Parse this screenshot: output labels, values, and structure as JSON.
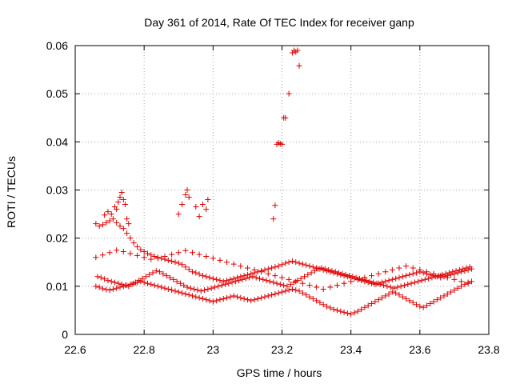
{
  "chart_data": {
    "type": "scatter",
    "title": "Day 361 of 2014, Rate Of TEC Index for receiver ganp",
    "xlabel": "GPS time / hours",
    "ylabel": "ROTI / TECUs",
    "xlim": [
      22.6,
      23.8
    ],
    "ylim": [
      0,
      0.06
    ],
    "xticks": [
      22.6,
      22.8,
      23.0,
      23.2,
      23.4,
      23.6,
      23.8
    ],
    "xtick_labels": [
      "22.6",
      "22.8",
      "23",
      "23.2",
      "23.4",
      "23.6",
      "23.8"
    ],
    "yticks": [
      0,
      0.01,
      0.02,
      0.03,
      0.04,
      0.05,
      0.06
    ],
    "ytick_labels": [
      "0",
      "0.01",
      "0.02",
      "0.03",
      "0.04",
      "0.05",
      "0.06"
    ],
    "grid": true,
    "marker": "+",
    "color": "#e00000",
    "series": [
      {
        "name": "ROTI",
        "x": [
          22.66,
          22.67,
          22.68,
          22.69,
          22.7,
          22.71,
          22.72,
          22.73,
          22.74,
          22.75,
          22.76,
          22.77,
          22.78,
          22.79,
          22.8,
          22.81,
          22.82,
          22.83,
          22.84,
          22.85,
          22.86,
          22.87,
          22.88,
          22.89,
          22.9,
          22.91,
          22.92,
          22.93,
          22.94,
          22.95,
          22.96,
          22.97,
          22.98,
          22.99,
          23.0,
          23.01,
          23.02,
          23.03,
          23.04,
          23.05,
          23.06,
          23.07,
          23.08,
          23.09,
          23.1,
          23.11,
          23.12,
          23.13,
          23.14,
          23.15,
          23.16,
          23.17,
          23.18,
          23.19,
          23.2,
          23.21,
          23.22,
          23.23,
          23.24,
          23.25,
          23.26,
          23.27,
          23.28,
          23.29,
          23.3,
          23.31,
          23.32,
          23.33,
          23.34,
          23.35,
          23.36,
          23.37,
          23.38,
          23.39,
          23.4,
          23.41,
          23.42,
          23.43,
          23.44,
          23.45,
          23.46,
          23.47,
          23.48,
          23.49,
          23.5,
          23.51,
          23.52,
          23.53,
          23.54,
          23.55,
          23.56,
          23.57,
          23.58,
          23.59,
          23.6,
          23.61,
          23.62,
          23.63,
          23.64,
          23.65,
          23.66,
          23.67,
          23.68,
          23.69,
          23.7,
          23.71,
          23.72,
          23.73,
          23.74,
          23.75,
          22.66,
          22.67,
          22.68,
          22.69,
          22.7,
          22.71,
          22.72,
          22.73,
          22.74,
          22.75,
          22.76,
          22.77,
          22.78,
          22.79,
          22.8,
          22.81,
          22.82,
          22.83,
          22.84,
          22.85,
          22.86,
          22.87,
          22.88,
          22.89,
          22.9,
          22.91,
          22.92,
          22.93,
          22.94,
          22.95,
          22.96,
          22.97,
          22.98,
          22.99,
          23.0,
          23.01,
          23.02,
          23.03,
          23.04,
          23.05,
          23.06,
          23.07,
          23.08,
          23.09,
          23.1,
          23.11,
          23.12,
          23.13,
          23.14,
          23.15,
          23.16,
          23.17,
          23.18,
          23.19,
          23.2,
          23.21,
          23.22,
          23.23,
          23.24,
          23.25,
          23.26,
          23.27,
          23.28,
          23.29,
          23.3,
          23.31,
          23.32,
          23.33,
          23.34,
          23.35,
          23.36,
          23.37,
          23.38,
          23.39,
          23.4,
          23.41,
          23.42,
          23.43,
          23.44,
          23.45,
          23.46,
          23.47,
          23.48,
          23.49,
          23.5,
          23.51,
          23.52,
          23.53,
          23.54,
          23.55,
          23.56,
          23.57,
          23.58,
          23.59,
          23.6,
          23.61,
          23.62,
          23.63,
          23.64,
          23.65,
          23.66,
          23.67,
          23.68,
          23.69,
          23.7,
          23.71,
          23.72,
          23.73,
          23.74,
          23.75,
          22.66,
          22.68,
          22.7,
          22.72,
          22.74,
          22.76,
          22.78,
          22.8,
          22.82,
          22.84,
          22.86,
          22.88,
          22.9,
          22.92,
          22.94,
          22.96,
          22.98,
          23.0,
          23.02,
          23.04,
          23.06,
          23.08,
          23.1,
          23.12,
          23.14,
          23.16,
          23.18,
          23.2,
          23.22,
          23.24,
          23.26,
          23.28,
          23.3,
          23.32,
          23.34,
          23.36,
          23.38,
          23.4,
          23.42,
          23.44,
          23.46,
          23.48,
          23.5,
          23.52,
          23.54,
          23.56,
          23.58,
          23.6,
          23.62,
          23.64,
          23.66,
          23.68,
          23.7,
          23.72,
          23.74,
          22.665,
          22.675,
          22.685,
          22.695,
          22.705,
          22.715,
          22.725,
          22.735,
          22.745,
          22.755,
          22.765,
          22.775,
          22.785,
          22.795,
          22.805,
          22.815,
          22.825,
          22.835,
          22.845,
          22.855,
          22.865,
          22.875,
          22.885,
          22.895,
          22.905,
          22.915,
          22.925,
          22.935,
          22.945,
          22.955,
          22.965,
          22.975,
          22.985,
          22.995,
          23.005,
          23.015,
          23.025,
          23.035,
          23.045,
          23.055,
          23.065,
          23.075,
          23.085,
          23.095,
          23.105,
          23.115,
          23.125,
          23.135,
          23.145,
          23.155,
          23.165,
          23.175,
          23.185,
          23.195,
          23.205,
          23.215,
          23.225,
          23.235,
          23.245,
          23.255,
          23.265,
          23.275,
          23.285,
          23.295,
          23.305,
          23.315,
          23.325,
          23.335,
          23.345,
          23.355,
          23.365,
          23.375,
          23.385,
          23.395,
          23.405,
          23.415,
          23.425,
          23.435,
          23.445,
          23.455,
          23.465,
          23.475,
          23.485,
          23.495,
          23.505,
          23.515,
          23.525,
          23.535,
          23.545,
          23.555,
          23.565,
          23.575,
          23.585,
          23.595,
          23.605,
          23.615,
          23.625,
          23.635,
          23.645,
          23.655,
          23.665,
          23.675,
          23.685,
          23.695,
          23.705,
          23.715,
          23.725,
          23.735,
          23.745,
          22.72,
          22.725,
          22.73,
          22.735,
          22.74,
          22.715,
          22.705,
          22.695,
          22.745,
          22.75,
          22.685,
          22.755,
          22.9,
          22.91,
          22.92,
          22.925,
          22.93,
          22.95,
          22.96,
          22.97,
          22.98,
          22.985,
          23.175,
          23.18,
          23.185,
          23.19,
          23.195,
          23.2,
          23.205,
          23.21,
          23.22,
          23.23,
          23.235,
          23.24,
          23.245,
          23.25
        ],
        "y": [
          0.023,
          0.0225,
          0.0228,
          0.0232,
          0.0236,
          0.024,
          0.0232,
          0.0225,
          0.022,
          0.021,
          0.02,
          0.019,
          0.0182,
          0.0176,
          0.0172,
          0.0168,
          0.0165,
          0.0162,
          0.016,
          0.0158,
          0.0156,
          0.0154,
          0.0152,
          0.015,
          0.0148,
          0.0145,
          0.014,
          0.0135,
          0.013,
          0.0128,
          0.0125,
          0.0122,
          0.012,
          0.0118,
          0.0116,
          0.0114,
          0.0112,
          0.011,
          0.0112,
          0.0114,
          0.0116,
          0.0118,
          0.012,
          0.0122,
          0.0124,
          0.0126,
          0.0128,
          0.013,
          0.0132,
          0.0134,
          0.0136,
          0.0138,
          0.014,
          0.0142,
          0.0145,
          0.0148,
          0.015,
          0.0152,
          0.015,
          0.0148,
          0.0146,
          0.0144,
          0.0142,
          0.014,
          0.0138,
          0.0136,
          0.0134,
          0.0132,
          0.013,
          0.0128,
          0.0126,
          0.0124,
          0.0122,
          0.012,
          0.0118,
          0.0116,
          0.0114,
          0.0112,
          0.011,
          0.0108,
          0.0106,
          0.0104,
          0.0106,
          0.0108,
          0.011,
          0.0112,
          0.0114,
          0.0116,
          0.0118,
          0.012,
          0.0122,
          0.0124,
          0.0126,
          0.0128,
          0.013,
          0.0128,
          0.0126,
          0.0124,
          0.0122,
          0.012,
          0.0118,
          0.012,
          0.0122,
          0.0124,
          0.0126,
          0.0128,
          0.013,
          0.0132,
          0.0134,
          0.0136,
          0.01,
          0.0098,
          0.0095,
          0.0093,
          0.0092,
          0.0094,
          0.0096,
          0.0098,
          0.01,
          0.0102,
          0.0104,
          0.0106,
          0.0108,
          0.011,
          0.0108,
          0.0106,
          0.0104,
          0.0102,
          0.01,
          0.0098,
          0.0096,
          0.0094,
          0.0092,
          0.009,
          0.0088,
          0.0086,
          0.0084,
          0.0082,
          0.008,
          0.0078,
          0.0076,
          0.0074,
          0.0072,
          0.007,
          0.0068,
          0.007,
          0.0072,
          0.0074,
          0.0076,
          0.0078,
          0.008,
          0.0078,
          0.0076,
          0.0074,
          0.0072,
          0.007,
          0.0072,
          0.0074,
          0.0076,
          0.0078,
          0.008,
          0.0082,
          0.0084,
          0.0086,
          0.0088,
          0.009,
          0.0092,
          0.0094,
          0.0092,
          0.009,
          0.0086,
          0.0082,
          0.0078,
          0.0074,
          0.007,
          0.0066,
          0.0062,
          0.0058,
          0.0055,
          0.0052,
          0.005,
          0.0048,
          0.0046,
          0.0044,
          0.0042,
          0.0045,
          0.0048,
          0.0052,
          0.0056,
          0.006,
          0.0064,
          0.0068,
          0.0072,
          0.0076,
          0.008,
          0.0084,
          0.0088,
          0.0086,
          0.0082,
          0.0078,
          0.0074,
          0.007,
          0.0066,
          0.0062,
          0.0058,
          0.0056,
          0.006,
          0.0064,
          0.0068,
          0.0072,
          0.0076,
          0.008,
          0.0084,
          0.0088,
          0.0092,
          0.0096,
          0.01,
          0.0104,
          0.0108,
          0.011,
          0.016,
          0.0165,
          0.017,
          0.0175,
          0.0172,
          0.0168,
          0.0164,
          0.016,
          0.0156,
          0.0158,
          0.0162,
          0.0166,
          0.017,
          0.0174,
          0.017,
          0.0166,
          0.0162,
          0.0158,
          0.0154,
          0.015,
          0.0146,
          0.0142,
          0.0138,
          0.0134,
          0.013,
          0.0126,
          0.0122,
          0.0118,
          0.0114,
          0.011,
          0.0106,
          0.0102,
          0.0098,
          0.0094,
          0.0098,
          0.0102,
          0.0106,
          0.011,
          0.0114,
          0.0118,
          0.0122,
          0.0126,
          0.013,
          0.0134,
          0.0138,
          0.0142,
          0.0138,
          0.0134,
          0.013,
          0.0126,
          0.0122,
          0.0118,
          0.0114,
          0.011,
          0.0106,
          0.012,
          0.0118,
          0.0115,
          0.0112,
          0.011,
          0.0108,
          0.0106,
          0.0104,
          0.0102,
          0.01,
          0.0104,
          0.0108,
          0.0112,
          0.0116,
          0.012,
          0.0124,
          0.0128,
          0.0132,
          0.013,
          0.0126,
          0.0122,
          0.0118,
          0.0114,
          0.011,
          0.0106,
          0.0102,
          0.0098,
          0.0096,
          0.0094,
          0.0092,
          0.009,
          0.0092,
          0.0094,
          0.0096,
          0.0098,
          0.01,
          0.0102,
          0.0104,
          0.0106,
          0.0108,
          0.011,
          0.0112,
          0.0114,
          0.0116,
          0.0118,
          0.012,
          0.0118,
          0.0116,
          0.0114,
          0.0112,
          0.011,
          0.0108,
          0.0106,
          0.0104,
          0.0102,
          0.01,
          0.0104,
          0.0108,
          0.0112,
          0.0116,
          0.012,
          0.0124,
          0.0128,
          0.0132,
          0.0136,
          0.0138,
          0.0136,
          0.0134,
          0.0132,
          0.013,
          0.0128,
          0.0126,
          0.0124,
          0.0122,
          0.012,
          0.0118,
          0.0116,
          0.0114,
          0.0112,
          0.011,
          0.0108,
          0.0106,
          0.0104,
          0.0102,
          0.01,
          0.0098,
          0.0096,
          0.0098,
          0.01,
          0.0102,
          0.0104,
          0.0106,
          0.0108,
          0.011,
          0.0112,
          0.0114,
          0.0116,
          0.0118,
          0.012,
          0.0122,
          0.0124,
          0.0126,
          0.0128,
          0.013,
          0.0132,
          0.0134,
          0.0136,
          0.0138,
          0.014,
          0.026,
          0.0275,
          0.0285,
          0.0295,
          0.028,
          0.0265,
          0.025,
          0.0255,
          0.027,
          0.024,
          0.0248,
          0.023,
          0.025,
          0.027,
          0.029,
          0.03,
          0.0285,
          0.0265,
          0.0245,
          0.027,
          0.026,
          0.028,
          0.024,
          0.0268,
          0.0395,
          0.0398,
          0.0396,
          0.0395,
          0.045,
          0.045,
          0.05,
          0.0585,
          0.059,
          0.0587,
          0.059,
          0.0558
        ]
      }
    ]
  }
}
